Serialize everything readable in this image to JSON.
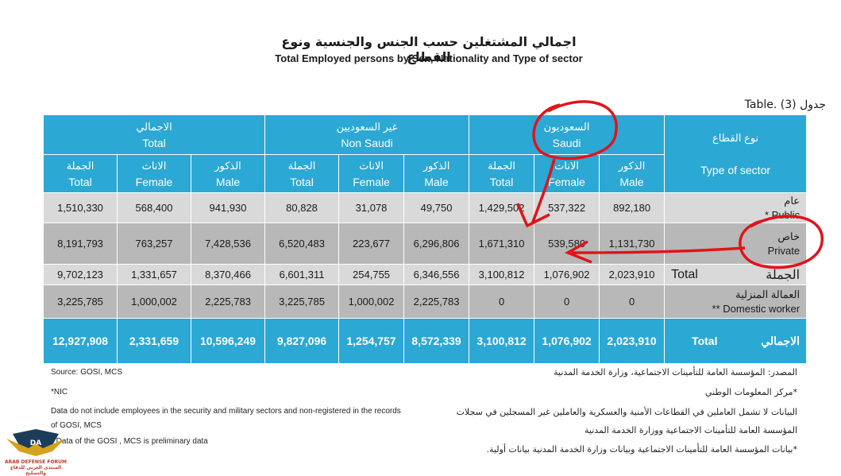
{
  "title": {
    "arabic": "اجمالي المشتغلين حسب الجنس والجنسية ونوع القطاع",
    "english": "Total Employed persons by Sex, Nationality and Type of sector"
  },
  "table_label": "Table. (3) جدول",
  "header": {
    "total_group": {
      "ar": "الاجمالي",
      "en": "Total"
    },
    "nonsaudi_group": {
      "ar": "غير السعوديين",
      "en": "Non Saudi"
    },
    "saudi_group": {
      "ar": "السعوديون",
      "en": "Saudi"
    },
    "sector": {
      "ar": "نوع القطاع",
      "en": "Type of sector"
    },
    "sub": {
      "total": {
        "ar": "الجملة",
        "en": "Total"
      },
      "female": {
        "ar": "الاناث",
        "en": "Female"
      },
      "male": {
        "ar": "الذكور",
        "en": "Male"
      }
    }
  },
  "rows": [
    {
      "label_ar": "عام",
      "label_en": "* Public",
      "values": [
        "1,510,330",
        "568,400",
        "941,930",
        "80,828",
        "31,078",
        "49,750",
        "1,429,502",
        "537,322",
        "892,180"
      ]
    },
    {
      "label_ar": "خاص",
      "label_en": "Private",
      "values": [
        "8,191,793",
        "763,257",
        "7,428,536",
        "6,520,483",
        "223,677",
        "6,296,806",
        "1,671,310",
        "539,580",
        "1,131,730"
      ]
    },
    {
      "label_ar": "الجملة",
      "label_en": "Total",
      "values": [
        "9,702,123",
        "1,331,657",
        "8,370,466",
        "6,601,311",
        "254,755",
        "6,346,556",
        "3,100,812",
        "1,076,902",
        "2,023,910"
      ]
    },
    {
      "label_ar": "العمالة المنزلية",
      "label_en": "** Domestic worker",
      "values": [
        "3,225,785",
        "1,000,002",
        "2,225,783",
        "3,225,785",
        "1,000,002",
        "2,225,783",
        "0",
        "0",
        "0"
      ]
    }
  ],
  "grand_total": {
    "label_ar": "الاجمالي",
    "label_en": "Total",
    "values": [
      "12,927,908",
      "2,331,659",
      "10,596,249",
      "9,827,096",
      "1,254,757",
      "8,572,339",
      "3,100,812",
      "1,076,902",
      "2,023,910"
    ]
  },
  "notes_en": {
    "source": "Source: GOSI, MCS",
    "nic": "*NIC",
    "exclusion_1": "Data do not include employees in the security and military sectors and non-registered in the records",
    "exclusion_2": "of GOSI, MCS",
    "preliminary": "* Data of the GOSI , MCS is preliminary data"
  },
  "notes_ar": {
    "source": "المصدر: المؤسسة العامة للتأمينات الاجتماعية، وزارة الخدمة المدنية",
    "nic": "*مركز المعلومات الوطني",
    "exclusion_1": "البيانات لا تشمل العاملين في القطاعات الأمنية والعسكرية والعاملين غير المسجلين في سجلات",
    "exclusion_2": "المؤسسة العامة للتأمينات الاجتماعية ووزارة الخدمة المدنية",
    "preliminary": "*بيانات المؤسسة العامة للتأمينات الاجتماعية وبيانات وزارة الخدمة المدنية بيانات أولية."
  },
  "watermark": {
    "line1": "ARAB DEFENSE FORUM",
    "line2": "المنتدى العربي للدفاع والتسليح",
    "initials": "DA"
  },
  "colors": {
    "header_blue": "#2ba8d3",
    "row_light": "#d9d9d9",
    "row_dark": "#b8b8b8",
    "annotation_red": "#e0141b"
  }
}
